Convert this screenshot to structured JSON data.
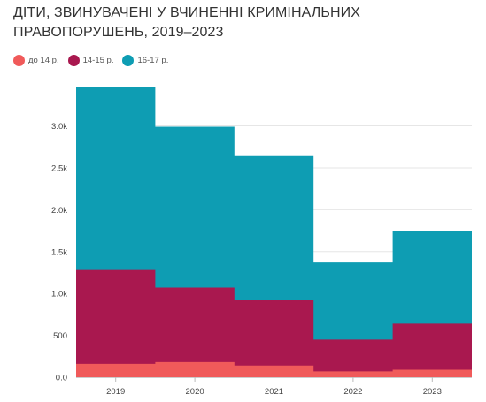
{
  "title_line1": "ДІТИ, ЗВИНУВАЧЕНІ У ВЧИНЕННІ КРИМІНАЛЬНИХ",
  "title_line2": "ПРАВОПОРУШЕНЬ, 2019–2023",
  "chart_data": {
    "type": "area",
    "stacked": true,
    "step": true,
    "title": "ДІТИ, ЗВИНУВАЧЕНІ У ВЧИНЕННІ КРИМІНАЛЬНИХ ПРАВОПОРУШЕНЬ, 2019–2023",
    "categories": [
      "2019",
      "2020",
      "2021",
      "2022",
      "2023"
    ],
    "series": [
      {
        "name": "до 14 р.",
        "color": "#f05a5a",
        "values": [
          160,
          180,
          140,
          70,
          90
        ]
      },
      {
        "name": "14-15 р.",
        "color": "#a9184f",
        "values": [
          1120,
          890,
          780,
          380,
          550
        ]
      },
      {
        "name": "16-17 р.",
        "color": "#0e9db3",
        "values": [
          2190,
          1920,
          1720,
          920,
          1100
        ]
      }
    ],
    "y_ticks": [
      {
        "value": 0,
        "label": "0.0"
      },
      {
        "value": 500,
        "label": "500"
      },
      {
        "value": 1000,
        "label": "1.0k"
      },
      {
        "value": 1500,
        "label": "1.5k"
      },
      {
        "value": 2000,
        "label": "2.0k"
      },
      {
        "value": 2500,
        "label": "2.5k"
      },
      {
        "value": 3000,
        "label": "3.0k"
      }
    ],
    "ylim": [
      0,
      3470
    ],
    "grid": true,
    "legend_position": "top-left",
    "xlabel": "",
    "ylabel": ""
  }
}
